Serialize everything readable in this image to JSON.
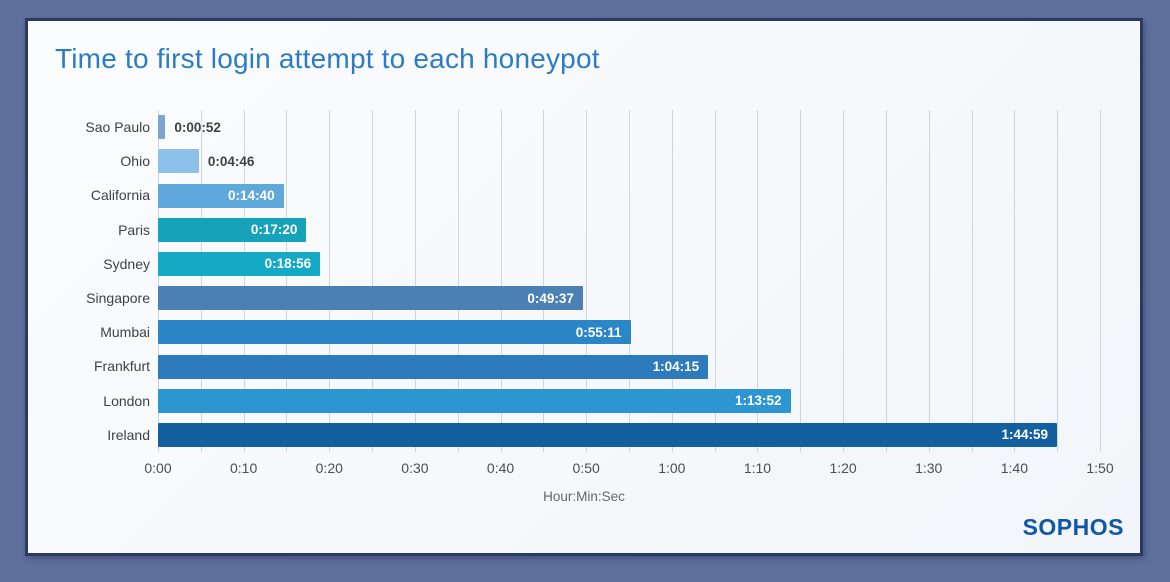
{
  "frame": {
    "outer_bg": "#60709d",
    "border_color": "#2a3a66",
    "card_bg": "#f8fafc"
  },
  "title": {
    "text": "Time to first login attempt to each honeypot",
    "color": "#2b7cc5"
  },
  "branding": {
    "logo_text": "SOPHOS",
    "color": "#0e57a9"
  },
  "chart_data": {
    "type": "bar",
    "orientation": "horizontal",
    "title": "Time to first login attempt to each honeypot",
    "xlabel": "Hour:Min:Sec",
    "xlim_seconds": [
      0,
      6600
    ],
    "major_tick_seconds": 600,
    "minor_grid_seconds": 300,
    "grid": true,
    "grid_color": "#d0d5dd",
    "x_tick_labels": [
      "0:00",
      "0:10",
      "0:20",
      "0:30",
      "0:40",
      "0:50",
      "1:00",
      "1:10",
      "1:20",
      "1:30",
      "1:40",
      "1:50"
    ],
    "bars": [
      {
        "category": "Sao Paulo",
        "label": "0:00:52",
        "seconds": 52,
        "color": "#7ca4d0",
        "label_inside": false
      },
      {
        "category": "Ohio",
        "label": "0:04:46",
        "seconds": 286,
        "color": "#8ec1ea",
        "label_inside": false
      },
      {
        "category": "California",
        "label": "0:14:40",
        "seconds": 880,
        "color": "#5ea8db",
        "label_inside": true
      },
      {
        "category": "Paris",
        "label": "0:17:20",
        "seconds": 1040,
        "color": "#16a3ba",
        "label_inside": true
      },
      {
        "category": "Sydney",
        "label": "0:18:56",
        "seconds": 1136,
        "color": "#14aac6",
        "label_inside": true
      },
      {
        "category": "Singapore",
        "label": "0:49:37",
        "seconds": 2977,
        "color": "#4a80b3",
        "label_inside": true
      },
      {
        "category": "Mumbai",
        "label": "0:55:11",
        "seconds": 3311,
        "color": "#2b86c8",
        "label_inside": true
      },
      {
        "category": "Frankfurt",
        "label": "1:04:15",
        "seconds": 3855,
        "color": "#2d7abc",
        "label_inside": true
      },
      {
        "category": "London",
        "label": "1:13:52",
        "seconds": 4432,
        "color": "#2d96d2",
        "label_inside": true
      },
      {
        "category": "Ireland",
        "label": "1:44:59",
        "seconds": 6299,
        "color": "#135f9f",
        "label_inside": true
      }
    ]
  }
}
